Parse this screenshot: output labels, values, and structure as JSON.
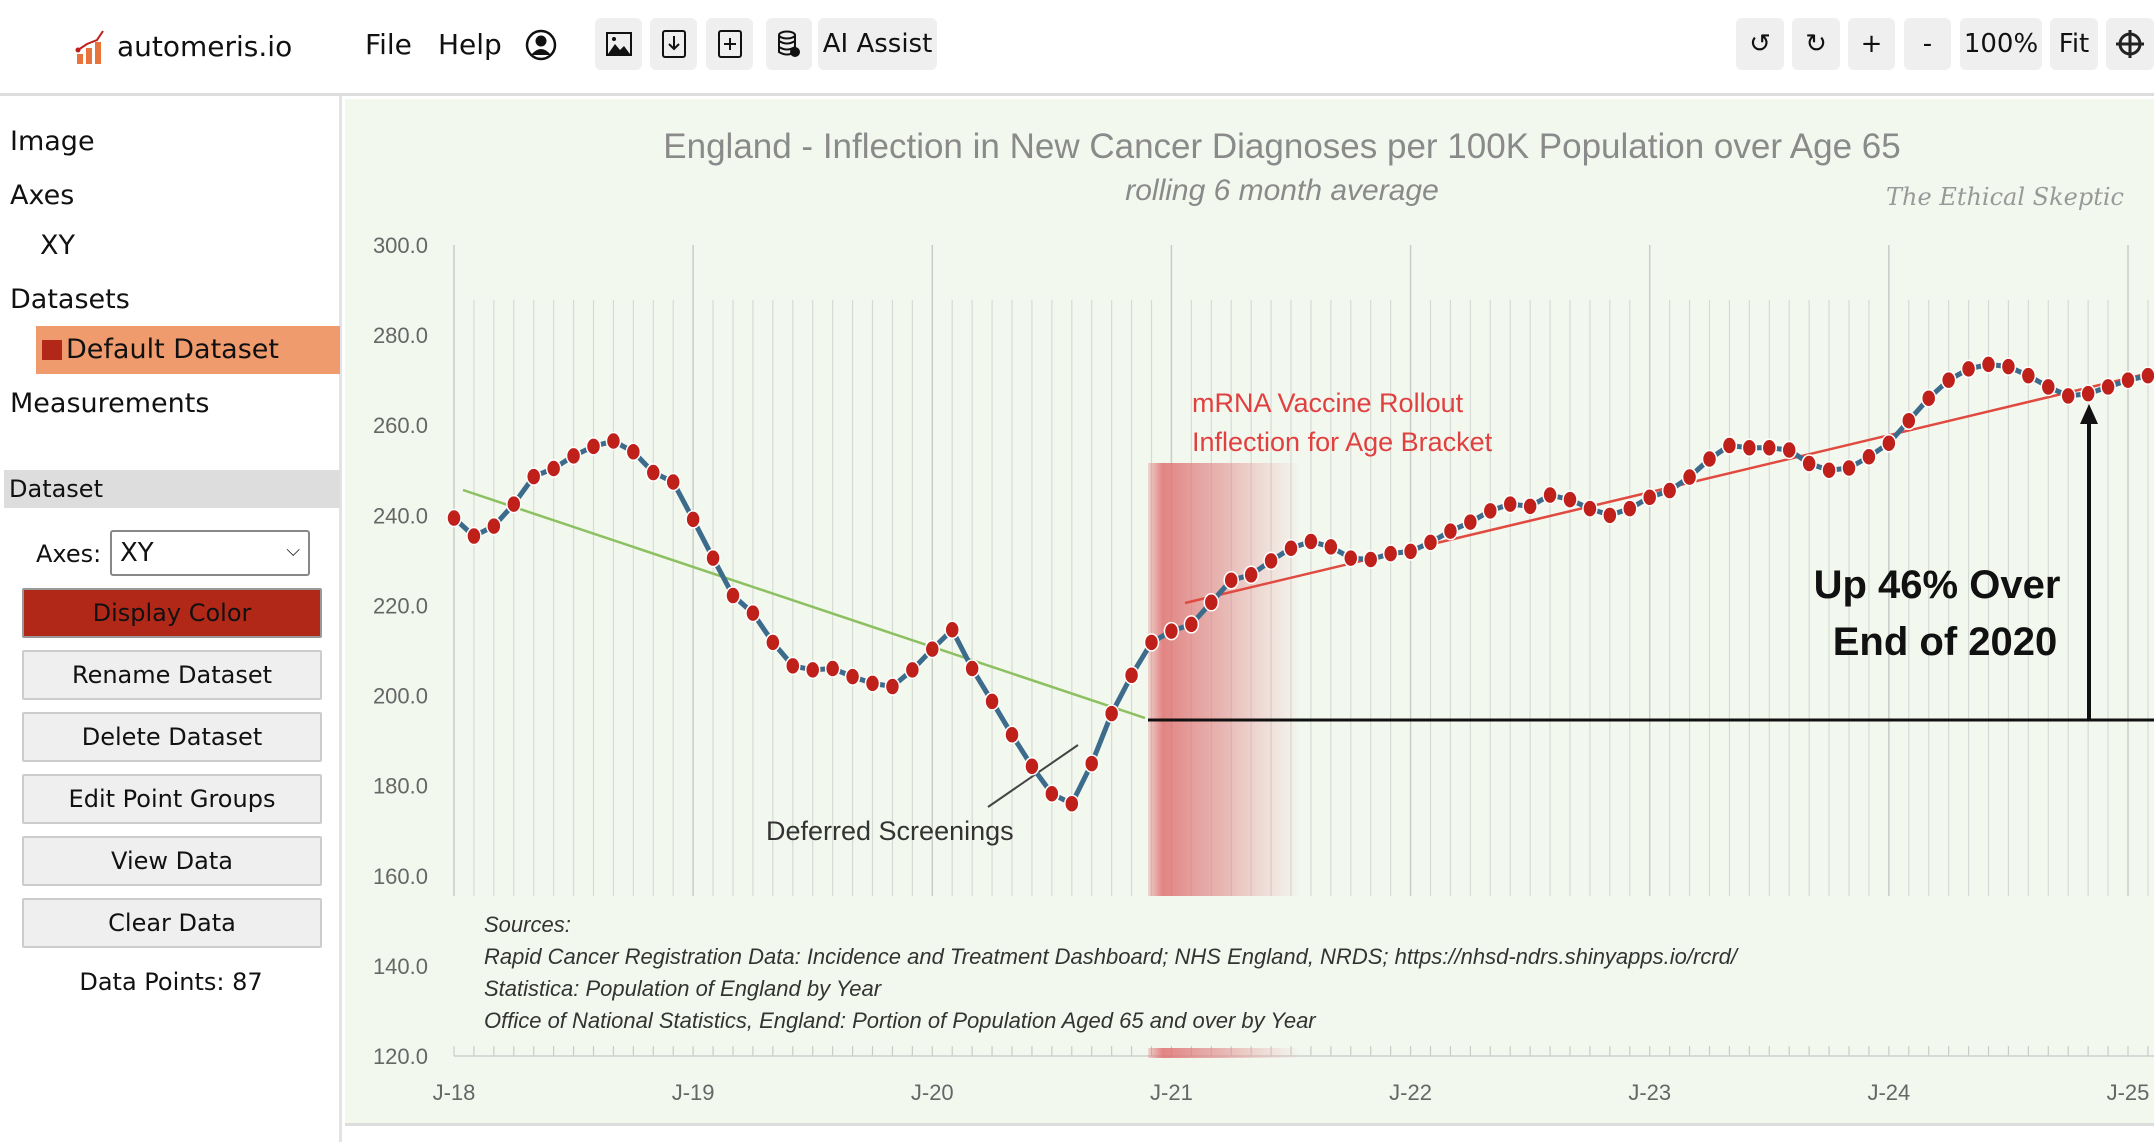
{
  "app": {
    "brand": "automeris.io",
    "menu": [
      "File",
      "Help"
    ],
    "ai_assist": "AI Assist",
    "zoom_level": "100%",
    "fit": "Fit",
    "zoom_in": "+",
    "zoom_out": "-"
  },
  "sidebar": {
    "items": {
      "image": "Image",
      "axes": "Axes",
      "xy": "XY",
      "datasets": "Datasets",
      "default_dataset": "Default Dataset",
      "measurements": "Measurements"
    },
    "panel_title": "Dataset",
    "axes_label": "Axes:",
    "axes_value": "XY",
    "dataset_color": "#b22818",
    "buttons": {
      "display_color": "Display Color",
      "rename": "Rename Dataset",
      "delete": "Delete Dataset",
      "edit_groups": "Edit Point Groups",
      "view": "View Data",
      "clear": "Clear Data"
    },
    "data_points": "Data Points: 87"
  },
  "chart_data": {
    "type": "line",
    "title": "England - Inflection in New Cancer Diagnoses per 100K Population over Age 65",
    "subtitle": "rolling 6 month average",
    "watermark": "The Ethical Skeptic",
    "ylim": [
      120,
      300
    ],
    "yticks": [
      "300.0",
      "280.0",
      "260.0",
      "240.0",
      "220.0",
      "200.0",
      "180.0",
      "160.0",
      "140.0",
      "120.0"
    ],
    "xticks": [
      "J-18",
      "J-19",
      "J-20",
      "J-21",
      "J-22",
      "J-23",
      "J-24",
      "J-25"
    ],
    "x_start": "2018-01",
    "x_step": "month",
    "values": [
      239.4,
      235.4,
      237.6,
      242.5,
      248.6,
      250.4,
      253.2,
      255.3,
      256.5,
      254.1,
      249.5,
      247.4,
      239.1,
      230.5,
      222.2,
      218.3,
      211.8,
      206.6,
      205.7,
      206.0,
      204.2,
      202.7,
      202.0,
      205.7,
      210.3,
      214.6,
      206.0,
      198.7,
      191.3,
      184.3,
      178.2,
      176.0,
      184.9,
      196.0,
      204.5,
      211.8,
      214.3,
      215.8,
      220.7,
      225.6,
      226.8,
      229.9,
      232.7,
      234.2,
      233.0,
      230.5,
      230.2,
      231.5,
      232.0,
      234.0,
      236.5,
      238.5,
      241.0,
      242.5,
      242.0,
      244.5,
      243.5,
      241.5,
      240.0,
      241.5,
      244.0,
      245.5,
      248.5,
      252.5,
      255.5,
      255.0,
      255.0,
      254.5,
      251.5,
      250.0,
      250.5,
      253.0,
      256.0,
      261.0,
      266.0,
      270.0,
      272.5,
      273.5,
      273.0,
      271.0,
      268.5,
      266.5,
      267.0,
      268.5,
      270.0,
      271.0,
      272.0
    ],
    "line_color": "#3d6b8c",
    "point_color": "#c0201a",
    "annotations": {
      "rollout_1": "mRNA Vaccine Rollout",
      "rollout_2": "Inflection for Age Bracket",
      "up_1": "Up 46% Over",
      "up_2": "End of 2020",
      "deferred": "Deferred Screenings"
    },
    "sources": [
      "Sources:",
      "Rapid Cancer Registration Data: Incidence and Treatment Dashboard; NHS England, NRDS; https://nhsd-ndrs.shinyapps.io/rcrd/",
      "Statistica: Population of England by Year",
      "Office of National Statistics, England: Portion of Population Aged 65 and over  by Year"
    ]
  }
}
